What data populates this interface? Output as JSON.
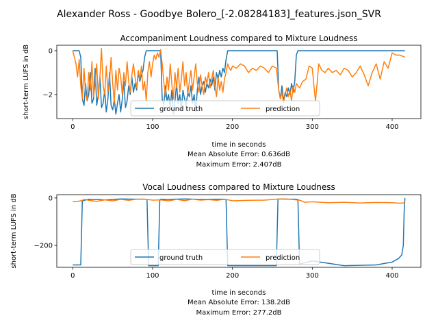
{
  "figure": {
    "suptitle": "Alexander Ross - Goodbye Bolero_[-2.08284183]_features.json_SVR"
  },
  "colors": {
    "ground_truth": "#1f77b4",
    "prediction": "#ff7f0e",
    "axis": "#000000",
    "legend_border": "#cccccc"
  },
  "chart_data": [
    {
      "type": "line",
      "title": "Accompaniment Loudness compared to Mixture Loudness",
      "xlabel": "time in seconds",
      "ylabel": "short-term LUFS in dB",
      "xlim": [
        -20,
        436
      ],
      "ylim": [
        -3.1,
        0.25
      ],
      "xticks": [
        0,
        100,
        200,
        300,
        400
      ],
      "yticks": [
        -2,
        0
      ],
      "metrics": [
        "Mean Absolute Error: 0.636dB",
        "Maximum Error: 2.407dB"
      ],
      "legend": {
        "placement": "lower-center",
        "entries": [
          "ground truth",
          "prediction"
        ]
      },
      "series": [
        {
          "name": "ground truth",
          "x": [
            0,
            8,
            10,
            12,
            14,
            16,
            18,
            20,
            22,
            24,
            26,
            28,
            30,
            32,
            34,
            36,
            38,
            40,
            42,
            44,
            46,
            48,
            50,
            52,
            54,
            56,
            58,
            60,
            62,
            64,
            66,
            68,
            70,
            72,
            74,
            76,
            78,
            80,
            82,
            84,
            86,
            88,
            90,
            92,
            94,
            96,
            98,
            100,
            102,
            104,
            106,
            108,
            110,
            112,
            114,
            116,
            118,
            120,
            122,
            124,
            126,
            128,
            130,
            132,
            134,
            136,
            138,
            140,
            142,
            144,
            146,
            148,
            150,
            152,
            154,
            156,
            158,
            160,
            162,
            164,
            166,
            168,
            170,
            172,
            174,
            176,
            178,
            180,
            182,
            184,
            186,
            188,
            190,
            192,
            194,
            196,
            200,
            220,
            240,
            256,
            258,
            260,
            262,
            264,
            266,
            268,
            270,
            272,
            274,
            276,
            278,
            280,
            282,
            284,
            300,
            320,
            340,
            360,
            380,
            400,
            416
          ],
          "y": [
            0,
            0,
            -0.3,
            -2.2,
            -2.5,
            -1.5,
            -2.3,
            -2.0,
            -1.0,
            -2.4,
            -2.2,
            -0.8,
            -2.5,
            -2.0,
            -1.2,
            -2.6,
            -2.4,
            -1.8,
            -2.8,
            -2.2,
            -1.0,
            -2.5,
            -2.7,
            -2.2,
            -2.9,
            -2.4,
            -2.0,
            -2.8,
            -2.2,
            -1.4,
            -2.6,
            -2.3,
            -1.6,
            -2.0,
            -1.2,
            -1.9,
            -1.5,
            -1.8,
            -1.0,
            -1.4,
            -1.1,
            -0.9,
            -0.3,
            0,
            0,
            0,
            0,
            0,
            0,
            0,
            0,
            0,
            0,
            -2.2,
            -2.5,
            -1.6,
            -2.3,
            -2.0,
            -2.6,
            -1.8,
            -2.9,
            -2.3,
            -1.5,
            -2.4,
            -2.0,
            -2.7,
            -1.8,
            -2.2,
            -2.5,
            -1.9,
            -2.1,
            -1.6,
            -2.4,
            -2.0,
            -2.8,
            -1.8,
            -1.2,
            -2.0,
            -1.6,
            -1.4,
            -1.9,
            -1.5,
            -1.7,
            -1.3,
            -1.6,
            -1.2,
            -1.8,
            -1.0,
            -1.3,
            -0.9,
            -1.2,
            -0.8,
            -1.0,
            -0.4,
            0,
            0,
            0,
            0,
            0,
            0,
            -1.8,
            -2.2,
            -1.6,
            -2.3,
            -1.9,
            -2.1,
            -1.7,
            -2.0,
            -1.5,
            -1.9,
            -1.4,
            -0.2,
            0,
            0,
            0,
            0,
            0,
            0,
            0,
            0,
            0
          ]
        },
        {
          "name": "prediction",
          "x": [
            0,
            2,
            4,
            6,
            8,
            10,
            12,
            14,
            16,
            18,
            20,
            22,
            24,
            26,
            28,
            30,
            32,
            34,
            36,
            38,
            40,
            42,
            44,
            46,
            48,
            50,
            52,
            54,
            56,
            58,
            60,
            62,
            64,
            66,
            68,
            70,
            72,
            74,
            76,
            78,
            80,
            82,
            84,
            86,
            88,
            90,
            92,
            94,
            96,
            98,
            100,
            102,
            104,
            106,
            108,
            110,
            112,
            114,
            116,
            118,
            120,
            122,
            124,
            126,
            128,
            130,
            132,
            134,
            136,
            138,
            140,
            142,
            144,
            146,
            148,
            150,
            152,
            154,
            156,
            158,
            160,
            162,
            164,
            166,
            168,
            170,
            172,
            174,
            176,
            178,
            180,
            182,
            184,
            186,
            188,
            190,
            192,
            194,
            196,
            198,
            200,
            205,
            210,
            215,
            220,
            225,
            230,
            235,
            240,
            245,
            250,
            255,
            258,
            260,
            262,
            264,
            266,
            268,
            270,
            272,
            274,
            276,
            278,
            280,
            284,
            288,
            292,
            296,
            300,
            302,
            304,
            306,
            308,
            312,
            316,
            320,
            325,
            330,
            335,
            340,
            345,
            350,
            355,
            360,
            365,
            370,
            375,
            380,
            385,
            390,
            395,
            400,
            405,
            410,
            416
          ],
          "y": [
            0,
            -0.3,
            -0.6,
            -1.2,
            -0.4,
            -1.6,
            -2.2,
            -0.8,
            -1.9,
            -2.3,
            -1.0,
            -1.8,
            -0.5,
            -2.1,
            -1.5,
            -0.6,
            -2.2,
            -1.2,
            0.1,
            -1.6,
            -2.0,
            -0.7,
            -1.9,
            -1.4,
            -0.3,
            -1.5,
            -2.4,
            -0.9,
            -1.8,
            -0.8,
            -1.2,
            -2.0,
            -1.0,
            -1.6,
            -0.5,
            -1.4,
            -1.9,
            -1.1,
            -0.6,
            -1.2,
            -1.7,
            -0.9,
            -1.3,
            -0.7,
            -1.8,
            -1.4,
            -2.3,
            -1.0,
            -0.5,
            -1.2,
            -0.6,
            -0.2,
            -0.4,
            -0.1,
            -0.3,
            0.05,
            -0.6,
            -1.4,
            -2.1,
            -1.2,
            -1.8,
            -0.6,
            -1.5,
            -2.2,
            -1.0,
            -1.7,
            -0.8,
            -1.9,
            -1.3,
            -0.5,
            -1.6,
            -1.0,
            -2.0,
            -1.4,
            -0.9,
            -1.8,
            -1.2,
            -0.6,
            -1.5,
            -1.9,
            -1.1,
            -1.6,
            -2.0,
            -1.2,
            -1.5,
            -1.0,
            -1.7,
            -1.3,
            -0.9,
            -1.6,
            -2.1,
            -1.2,
            -1.8,
            -1.4,
            -1.9,
            -1.3,
            -1.0,
            -0.6,
            -0.8,
            -0.9,
            -0.7,
            -0.8,
            -0.6,
            -0.7,
            -1.0,
            -0.8,
            -0.9,
            -0.7,
            -0.8,
            -1.0,
            -0.7,
            -0.8,
            -1.8,
            -2.2,
            -1.9,
            -2.4,
            -2.0,
            -1.7,
            -2.1,
            -1.8,
            -2.3,
            -1.6,
            -1.9,
            -1.5,
            -1.7,
            -1.4,
            -1.3,
            -0.7,
            -0.8,
            -1.6,
            -2.3,
            -1.5,
            -0.6,
            -0.9,
            -1.0,
            -0.8,
            -1.0,
            -0.9,
            -1.1,
            -0.8,
            -0.9,
            -1.2,
            -1.0,
            -0.7,
            -1.1,
            -1.6,
            -1.0,
            -0.6,
            -1.3,
            -0.5,
            -0.8,
            -0.1,
            -0.2,
            -0.2,
            -0.3
          ]
        }
      ]
    },
    {
      "type": "line",
      "title": "Vocal Loudness compared to Mixture Loudness",
      "xlabel": "time in seconds",
      "ylabel": "short-term LUFS in dB",
      "xlim": [
        -20,
        436
      ],
      "ylim": [
        -292,
        14
      ],
      "xticks": [
        0,
        100,
        200,
        300,
        400
      ],
      "yticks": [
        -200,
        0
      ],
      "metrics": [
        "Mean Absolute Error: 138.2dB",
        "Maximum Error: 277.2dB"
      ],
      "legend": {
        "placement": "lower-center",
        "entries": [
          "ground truth",
          "prediction"
        ]
      },
      "series": [
        {
          "name": "ground truth",
          "x": [
            0,
            8,
            10,
            12,
            20,
            40,
            60,
            80,
            90,
            93,
            95,
            107,
            109,
            110,
            120,
            140,
            160,
            180,
            190,
            192,
            194,
            210,
            230,
            255,
            257,
            258,
            270,
            280,
            282,
            284,
            300,
            340,
            380,
            400,
            408,
            412,
            414,
            415,
            416
          ],
          "y": [
            -282,
            -282,
            -282,
            -12,
            -5,
            -8,
            -4,
            -5,
            -5,
            -6,
            -285,
            -285,
            -8,
            -5,
            -6,
            -4,
            -6,
            -5,
            -5,
            -6,
            -285,
            -285,
            -285,
            -285,
            -6,
            -4,
            -5,
            -5,
            -6,
            -278,
            -265,
            -285,
            -282,
            -270,
            -255,
            -240,
            -200,
            -60,
            0
          ]
        },
        {
          "name": "prediction",
          "x": [
            0,
            5,
            10,
            15,
            20,
            30,
            40,
            50,
            60,
            70,
            80,
            90,
            95,
            100,
            110,
            120,
            130,
            140,
            150,
            160,
            170,
            180,
            190,
            195,
            200,
            220,
            240,
            255,
            260,
            270,
            280,
            285,
            290,
            300,
            320,
            340,
            360,
            380,
            400,
            410,
            416
          ],
          "y": [
            -15,
            -15,
            -12,
            -6,
            -10,
            -14,
            -8,
            -12,
            -6,
            -10,
            -5,
            -5,
            -7,
            -9,
            -8,
            -12,
            -6,
            -11,
            -5,
            -9,
            -7,
            -10,
            -6,
            -8,
            -12,
            -10,
            -9,
            -5,
            -4,
            -5,
            -8,
            -10,
            -18,
            -16,
            -20,
            -18,
            -21,
            -19,
            -20,
            -22,
            -20
          ]
        }
      ]
    }
  ]
}
